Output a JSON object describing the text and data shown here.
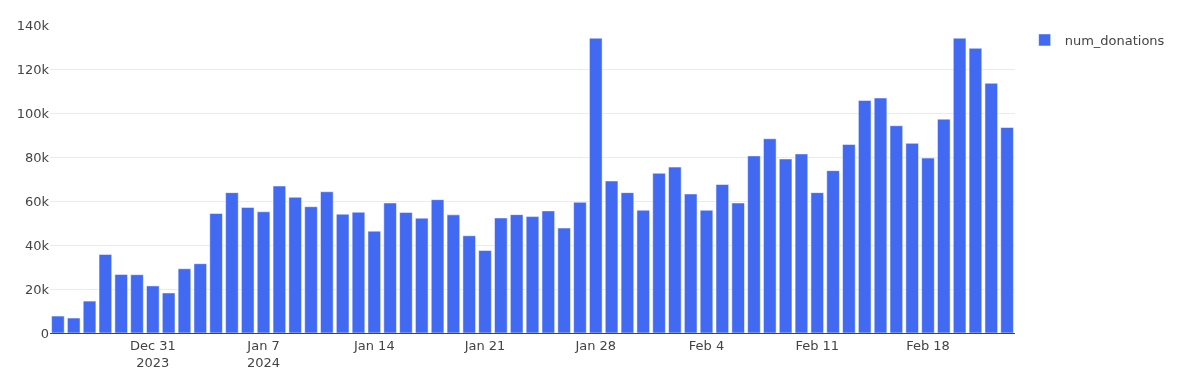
{
  "chart_data": {
    "type": "bar",
    "x": [
      "2023-12-25",
      "2023-12-26",
      "2023-12-27",
      "2023-12-28",
      "2023-12-29",
      "2023-12-30",
      "2023-12-31",
      "2024-01-01",
      "2024-01-02",
      "2024-01-03",
      "2024-01-04",
      "2024-01-05",
      "2024-01-06",
      "2024-01-07",
      "2024-01-08",
      "2024-01-09",
      "2024-01-10",
      "2024-01-11",
      "2024-01-12",
      "2024-01-13",
      "2024-01-14",
      "2024-01-15",
      "2024-01-16",
      "2024-01-17",
      "2024-01-18",
      "2024-01-19",
      "2024-01-20",
      "2024-01-21",
      "2024-01-22",
      "2024-01-23",
      "2024-01-24",
      "2024-01-25",
      "2024-01-26",
      "2024-01-27",
      "2024-01-28",
      "2024-01-29",
      "2024-01-30",
      "2024-01-31",
      "2024-02-01",
      "2024-02-02",
      "2024-02-03",
      "2024-02-04",
      "2024-02-05",
      "2024-02-06",
      "2024-02-07",
      "2024-02-08",
      "2024-02-09",
      "2024-02-10",
      "2024-02-11",
      "2024-02-12",
      "2024-02-13",
      "2024-02-14",
      "2024-02-15",
      "2024-02-16",
      "2024-02-17",
      "2024-02-18",
      "2024-02-19",
      "2024-02-20",
      "2024-02-21",
      "2024-02-22",
      "2024-02-23"
    ],
    "series": [
      {
        "name": "num_donations",
        "color": "#4169f1",
        "values": [
          7700,
          6800,
          14500,
          35700,
          26600,
          26500,
          21400,
          18200,
          29200,
          31500,
          54300,
          63800,
          57100,
          55100,
          66800,
          61700,
          57400,
          64200,
          54000,
          54900,
          46300,
          59100,
          54800,
          52200,
          60600,
          53700,
          44200,
          37500,
          52300,
          53800,
          52900,
          55500,
          47700,
          59400,
          134000,
          69100,
          63800,
          55800,
          72600,
          75400,
          63200,
          55800,
          67500,
          59100,
          80500,
          88300,
          79100,
          81400,
          63800,
          73800,
          85700,
          105700,
          106800,
          94200,
          86200,
          79500,
          97200,
          134000,
          129400,
          113500,
          93400
        ]
      }
    ],
    "xlim": [
      "2023-12-24T12:00",
      "2024-02-23T12:00"
    ],
    "xticks": [
      {
        "value": "2023-12-31",
        "label": "Dec 31\n2023"
      },
      {
        "value": "2024-01-07",
        "label": "Jan 7\n2024"
      },
      {
        "value": "2024-01-14",
        "label": "Jan 14"
      },
      {
        "value": "2024-01-21",
        "label": "Jan 21"
      },
      {
        "value": "2024-01-28",
        "label": "Jan 28"
      },
      {
        "value": "2024-02-04",
        "label": "Feb 4"
      },
      {
        "value": "2024-02-11",
        "label": "Feb 11"
      },
      {
        "value": "2024-02-18",
        "label": "Feb 18"
      }
    ],
    "ylim": [
      0,
      140000
    ],
    "yticks": [
      {
        "value": 0,
        "label": "0"
      },
      {
        "value": 20000,
        "label": "20k"
      },
      {
        "value": 40000,
        "label": "40k"
      },
      {
        "value": 60000,
        "label": "60k"
      },
      {
        "value": 80000,
        "label": "80k"
      },
      {
        "value": 100000,
        "label": "100k"
      },
      {
        "value": 120000,
        "label": "120k"
      },
      {
        "value": 140000,
        "label": "140k"
      }
    ],
    "grid": "y",
    "legend": "top right"
  }
}
